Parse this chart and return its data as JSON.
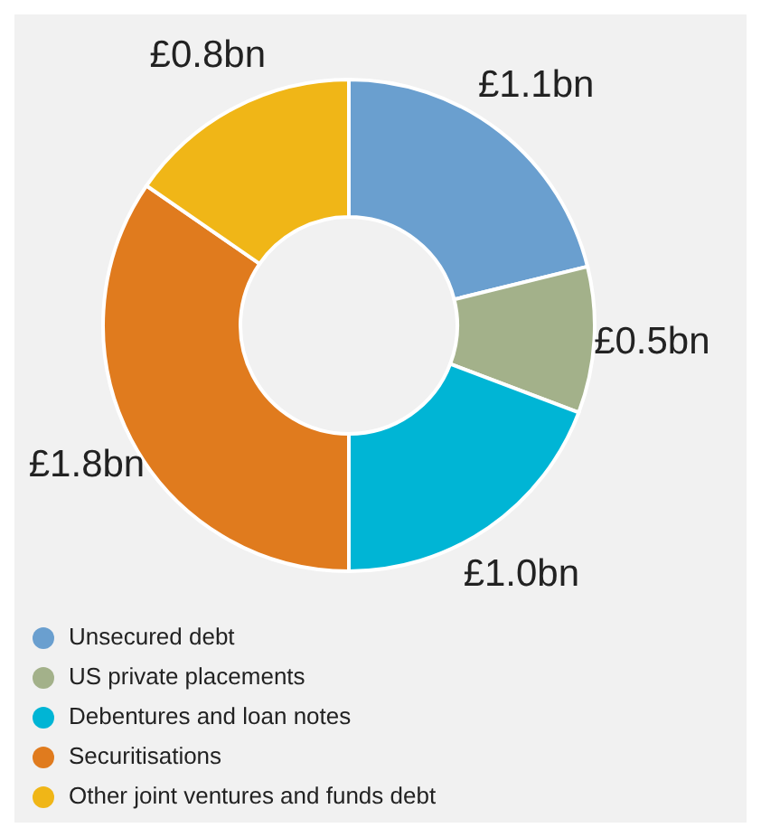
{
  "chart_data": {
    "type": "donut",
    "categories": [
      "Unsecured debt",
      "US private placements",
      "Debentures and loan notes",
      "Securitisations",
      "Other joint ventures and funds debt"
    ],
    "values": [
      1.1,
      0.5,
      1.0,
      1.8,
      0.8
    ],
    "colors": [
      "#6a9fcf",
      "#a3b18a",
      "#00b5d5",
      "#e07b1e",
      "#f0b617"
    ],
    "value_labels": [
      "£1.1bn",
      "£0.5bn",
      "£1.0bn",
      "£1.8bn",
      "£0.8bn"
    ],
    "legend": "bottom"
  }
}
